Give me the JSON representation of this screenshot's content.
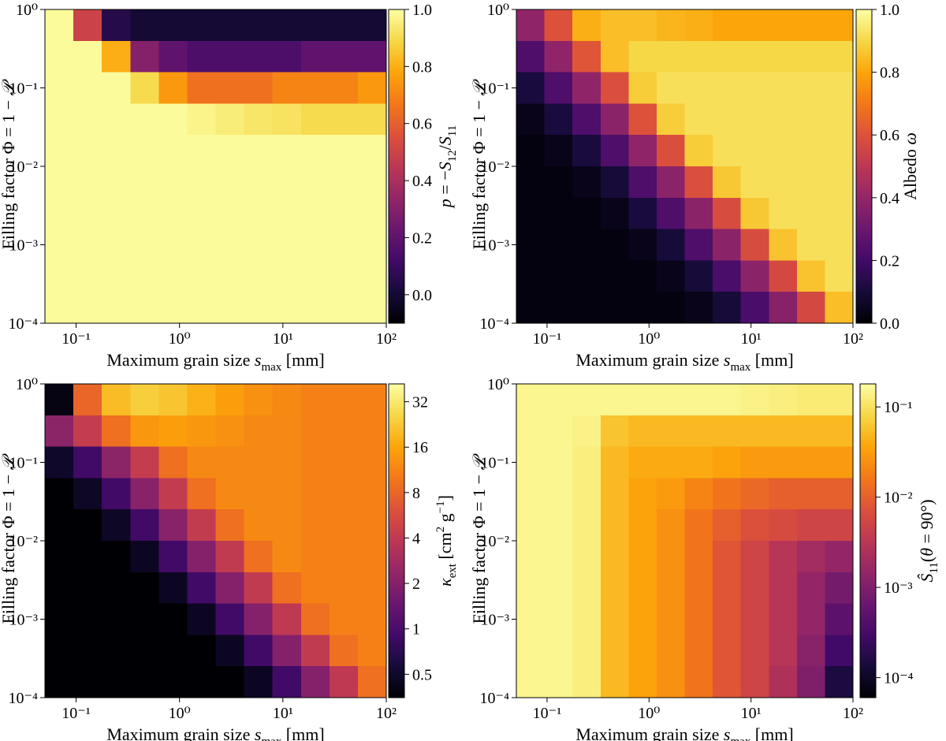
{
  "chart_data": [
    {
      "type": "heatmap",
      "cmap": "inferno",
      "xscale": "log",
      "yscale": "log",
      "xlabel": [
        {
          "text": "Maximum grain size "
        },
        {
          "text": "s",
          "italic": true
        },
        {
          "text": "max",
          "position": "sub"
        },
        {
          "text": " [mm]"
        }
      ],
      "ylabel": [
        {
          "text": "Filling factor Φ = 1 − "
        },
        {
          "text": "𝒫",
          "italic": true
        }
      ],
      "xlim": [
        0.05,
        100
      ],
      "ylim": [
        0.0001,
        1
      ],
      "xticks": [
        {
          "value": 0.1,
          "label": "10⁻¹"
        },
        {
          "value": 1,
          "label": "10⁰"
        },
        {
          "value": 10,
          "label": "10¹"
        },
        {
          "value": 100,
          "label": "10²"
        }
      ],
      "yticks": [
        {
          "value": 0.0001,
          "label": "10⁻⁴"
        },
        {
          "value": 0.001,
          "label": "10⁻³"
        },
        {
          "value": 0.01,
          "label": "10⁻²"
        },
        {
          "value": 0.1,
          "label": "10⁻¹"
        },
        {
          "value": 1,
          "label": "10⁰"
        }
      ],
      "z": [
        [
          0.99,
          0.5,
          0.05,
          0,
          0,
          0,
          0,
          0,
          0,
          0,
          0,
          0
        ],
        [
          0.99,
          0.99,
          0.8,
          0.3,
          0.2,
          0.15,
          0.15,
          0.15,
          0.15,
          0.2,
          0.2,
          0.2
        ],
        [
          0.99,
          0.99,
          0.99,
          0.9,
          0.75,
          0.65,
          0.65,
          0.65,
          0.7,
          0.7,
          0.7,
          0.75
        ],
        [
          0.99,
          0.99,
          0.99,
          0.99,
          0.99,
          0.97,
          0.95,
          0.93,
          0.92,
          0.9,
          0.9,
          0.9
        ],
        [
          0.99,
          0.99,
          0.99,
          0.99,
          0.99,
          0.99,
          0.99,
          0.99,
          0.99,
          0.99,
          0.99,
          0.99
        ],
        [
          0.99,
          0.99,
          0.99,
          0.99,
          0.99,
          0.99,
          0.99,
          0.99,
          0.99,
          0.99,
          0.99,
          0.99
        ],
        [
          0.99,
          0.99,
          0.99,
          0.99,
          0.99,
          0.99,
          0.99,
          0.99,
          0.99,
          0.99,
          0.99,
          0.99
        ],
        [
          0.99,
          0.99,
          0.99,
          0.99,
          0.99,
          0.99,
          0.99,
          0.99,
          0.99,
          0.99,
          0.99,
          0.99
        ],
        [
          0.99,
          0.99,
          0.99,
          0.99,
          0.99,
          0.99,
          0.99,
          0.99,
          0.99,
          0.99,
          0.99,
          0.99
        ],
        [
          0.99,
          0.99,
          0.99,
          0.99,
          0.99,
          0.99,
          0.99,
          0.99,
          0.99,
          0.99,
          0.99,
          0.99
        ]
      ],
      "colorbar": {
        "scale": "linear",
        "lim": [
          -0.1,
          1
        ],
        "ticks": [
          {
            "value": 0,
            "label": "0.0"
          },
          0.2,
          0.4,
          0.6,
          0.8,
          {
            "value": 1,
            "label": "1.0"
          }
        ],
        "label": [
          {
            "text": "p",
            "italic": true
          },
          {
            "text": " = −"
          },
          {
            "text": "S",
            "italic": true
          },
          {
            "text": "12",
            "position": "sub"
          },
          {
            "text": "/"
          },
          {
            "text": "S",
            "italic": true
          },
          {
            "text": "11",
            "position": "sub"
          }
        ]
      }
    },
    {
      "type": "heatmap",
      "cmap": "inferno",
      "xscale": "log",
      "yscale": "log",
      "xlabel": [
        {
          "text": "Maximum grain size "
        },
        {
          "text": "s",
          "italic": true
        },
        {
          "text": "max",
          "position": "sub"
        },
        {
          "text": " [mm]"
        }
      ],
      "ylabel": [
        {
          "text": "Filling factor Φ = 1 − "
        },
        {
          "text": "𝒫",
          "italic": true
        }
      ],
      "xlim": [
        0.05,
        100
      ],
      "ylim": [
        0.0001,
        1
      ],
      "xticks": [
        {
          "value": 0.1,
          "label": "10⁻¹"
        },
        {
          "value": 1,
          "label": "10⁰"
        },
        {
          "value": 10,
          "label": "10¹"
        },
        {
          "value": 100,
          "label": "10²"
        }
      ],
      "yticks": [
        {
          "value": 0.0001,
          "label": "10⁻⁴"
        },
        {
          "value": 0.001,
          "label": "10⁻³"
        },
        {
          "value": 0.01,
          "label": "10⁻²"
        },
        {
          "value": 0.1,
          "label": "10⁻¹"
        },
        {
          "value": 1,
          "label": "10⁰"
        }
      ],
      "z": [
        [
          0.39,
          0.6,
          0.82,
          0.85,
          0.85,
          0.83,
          0.82,
          0.8,
          0.8,
          0.8,
          0.8,
          0.8
        ],
        [
          0.23,
          0.39,
          0.61,
          0.85,
          0.9,
          0.9,
          0.9,
          0.9,
          0.9,
          0.9,
          0.9,
          0.9
        ],
        [
          0.11,
          0.23,
          0.39,
          0.59,
          0.88,
          0.92,
          0.92,
          0.92,
          0.92,
          0.92,
          0.92,
          0.92
        ],
        [
          0.04,
          0.11,
          0.23,
          0.38,
          0.6,
          0.88,
          0.92,
          0.92,
          0.92,
          0.92,
          0.92,
          0.92
        ],
        [
          0.02,
          0.04,
          0.11,
          0.23,
          0.39,
          0.59,
          0.88,
          0.92,
          0.92,
          0.92,
          0.92,
          0.92
        ],
        [
          0.02,
          0.02,
          0.04,
          0.1,
          0.23,
          0.38,
          0.59,
          0.87,
          0.92,
          0.92,
          0.92,
          0.92
        ],
        [
          0.02,
          0.02,
          0.02,
          0.04,
          0.11,
          0.23,
          0.38,
          0.58,
          0.87,
          0.92,
          0.92,
          0.92
        ],
        [
          0.02,
          0.02,
          0.02,
          0.02,
          0.04,
          0.1,
          0.23,
          0.38,
          0.58,
          0.86,
          0.92,
          0.92
        ],
        [
          0.02,
          0.02,
          0.02,
          0.02,
          0.02,
          0.04,
          0.1,
          0.22,
          0.38,
          0.57,
          0.86,
          0.92
        ],
        [
          0.02,
          0.02,
          0.02,
          0.02,
          0.02,
          0.02,
          0.04,
          0.1,
          0.22,
          0.37,
          0.57,
          0.85
        ]
      ],
      "colorbar": {
        "scale": "linear",
        "lim": [
          0,
          1
        ],
        "ticks": [
          {
            "value": 0,
            "label": "0.0"
          },
          0.2,
          0.4,
          0.6,
          0.8,
          {
            "value": 1,
            "label": "1.0"
          }
        ],
        "label": [
          {
            "text": "Albedo "
          },
          {
            "text": "ω",
            "italic": true
          }
        ]
      }
    },
    {
      "type": "heatmap",
      "cmap": "inferno",
      "xscale": "log",
      "yscale": "log",
      "xlabel": [
        {
          "text": "Maximum grain size "
        },
        {
          "text": "s",
          "italic": true
        },
        {
          "text": "max",
          "position": "sub"
        },
        {
          "text": " [mm]"
        }
      ],
      "ylabel": [
        {
          "text": "Filling factor Φ = 1 − "
        },
        {
          "text": "𝒫",
          "italic": true
        }
      ],
      "xlim": [
        0.05,
        100
      ],
      "ylim": [
        0.0001,
        1
      ],
      "xticks": [
        {
          "value": 0.1,
          "label": "10⁻¹"
        },
        {
          "value": 1,
          "label": "10⁰"
        },
        {
          "value": 10,
          "label": "10¹"
        },
        {
          "value": 100,
          "label": "10²"
        }
      ],
      "yticks": [
        {
          "value": 0.0001,
          "label": "10⁻⁴"
        },
        {
          "value": 0.001,
          "label": "10⁻³"
        },
        {
          "value": 0.01,
          "label": "10⁻²"
        },
        {
          "value": 0.1,
          "label": "10⁻¹"
        },
        {
          "value": 1,
          "label": "10⁰"
        }
      ],
      "z": [
        [
          0.4,
          8,
          20,
          24,
          22,
          18,
          15,
          13,
          12,
          11,
          11,
          11
        ],
        [
          2.2,
          4.3,
          9,
          14,
          15,
          14,
          13,
          12,
          12,
          11,
          11,
          11
        ],
        [
          0.5,
          0.9,
          2.2,
          4.3,
          9,
          12,
          12,
          12,
          12,
          11,
          11,
          11
        ],
        [
          0.35,
          0.47,
          0.9,
          2.1,
          4.2,
          9,
          12,
          12,
          12,
          11,
          11,
          11
        ],
        [
          0.35,
          0.35,
          0.47,
          0.9,
          2.1,
          4.2,
          9,
          12,
          12,
          11,
          11,
          11
        ],
        [
          0.35,
          0.35,
          0.35,
          0.46,
          0.9,
          2,
          4.1,
          9,
          12,
          11,
          11,
          11
        ],
        [
          0.35,
          0.35,
          0.35,
          0.35,
          0.46,
          0.9,
          2,
          4.1,
          9,
          11,
          11,
          11
        ],
        [
          0.35,
          0.35,
          0.35,
          0.35,
          0.35,
          0.46,
          0.9,
          2,
          4,
          9,
          11,
          11
        ],
        [
          0.35,
          0.35,
          0.35,
          0.35,
          0.35,
          0.35,
          0.46,
          0.9,
          2,
          4.1,
          9,
          11
        ],
        [
          0.35,
          0.35,
          0.35,
          0.35,
          0.35,
          0.35,
          0.35,
          0.46,
          0.9,
          2,
          4,
          9
        ]
      ],
      "colorbar": {
        "scale": "log",
        "lim": [
          0.35,
          42
        ],
        "ticks": [
          0.5,
          1,
          2,
          4,
          8,
          16,
          32
        ],
        "label": [
          {
            "text": "κ",
            "italic": true
          },
          {
            "text": "ext",
            "position": "sub"
          },
          {
            "text": " [cm"
          },
          {
            "text": "2",
            "position": "sup"
          },
          {
            "text": " g"
          },
          {
            "text": "−1",
            "position": "sup"
          },
          {
            "text": "]"
          }
        ]
      }
    },
    {
      "type": "heatmap",
      "cmap": "inferno",
      "xscale": "log",
      "yscale": "log",
      "xlabel": [
        {
          "text": "Maximum grain size "
        },
        {
          "text": "s",
          "italic": true
        },
        {
          "text": "max",
          "position": "sub"
        },
        {
          "text": " [mm]"
        }
      ],
      "ylabel": [
        {
          "text": "Filling factor Φ = 1 − "
        },
        {
          "text": "𝒫",
          "italic": true
        }
      ],
      "xlim": [
        0.05,
        100
      ],
      "ylim": [
        0.0001,
        1
      ],
      "xticks": [
        {
          "value": 0.1,
          "label": "10⁻¹"
        },
        {
          "value": 1,
          "label": "10⁰"
        },
        {
          "value": 10,
          "label": "10¹"
        },
        {
          "value": 100,
          "label": "10²"
        }
      ],
      "yticks": [
        {
          "value": 0.0001,
          "label": "10⁻⁴"
        },
        {
          "value": 0.001,
          "label": "10⁻³"
        },
        {
          "value": 0.01,
          "label": "10⁻²"
        },
        {
          "value": 0.1,
          "label": "10⁻¹"
        },
        {
          "value": 1,
          "label": "10⁰"
        }
      ],
      "z": [
        [
          0.15,
          0.15,
          0.15,
          0.15,
          0.15,
          0.15,
          0.15,
          0.15,
          0.14,
          0.13,
          0.12,
          0.12
        ],
        [
          0.15,
          0.15,
          0.14,
          0.06,
          0.05,
          0.05,
          0.05,
          0.05,
          0.05,
          0.05,
          0.05,
          0.05
        ],
        [
          0.15,
          0.15,
          0.13,
          0.05,
          0.04,
          0.04,
          0.04,
          0.035,
          0.03,
          0.03,
          0.03,
          0.03
        ],
        [
          0.15,
          0.15,
          0.13,
          0.05,
          0.035,
          0.03,
          0.02,
          0.015,
          0.012,
          0.01,
          0.01,
          0.01
        ],
        [
          0.15,
          0.15,
          0.13,
          0.05,
          0.035,
          0.025,
          0.015,
          0.01,
          0.007,
          0.006,
          0.005,
          0.005
        ],
        [
          0.15,
          0.15,
          0.13,
          0.05,
          0.035,
          0.025,
          0.015,
          0.008,
          0.005,
          0.003,
          0.002,
          0.0015
        ],
        [
          0.15,
          0.15,
          0.13,
          0.05,
          0.035,
          0.025,
          0.015,
          0.008,
          0.005,
          0.003,
          0.0015,
          0.0008
        ],
        [
          0.15,
          0.15,
          0.13,
          0.05,
          0.035,
          0.025,
          0.015,
          0.008,
          0.005,
          0.003,
          0.0015,
          0.0005
        ],
        [
          0.15,
          0.15,
          0.13,
          0.05,
          0.035,
          0.025,
          0.015,
          0.008,
          0.005,
          0.003,
          0.0012,
          0.0003
        ],
        [
          0.15,
          0.15,
          0.13,
          0.05,
          0.035,
          0.025,
          0.015,
          0.008,
          0.005,
          0.0025,
          0.001,
          0.00015
        ]
      ],
      "colorbar": {
        "scale": "log",
        "lim": [
          6e-05,
          0.18
        ],
        "ticks": [
          {
            "value": 0.0001,
            "label": "10⁻⁴"
          },
          {
            "value": 0.001,
            "label": "10⁻³"
          },
          {
            "value": 0.01,
            "label": "10⁻²"
          },
          {
            "value": 0.1,
            "label": "10⁻¹"
          }
        ],
        "label": [
          {
            "text": "Ŝ",
            "italic": true
          },
          {
            "text": "11",
            "position": "sub"
          },
          {
            "text": "("
          },
          {
            "text": "θ",
            "italic": true
          },
          {
            "text": " = 90°)"
          }
        ]
      }
    }
  ]
}
